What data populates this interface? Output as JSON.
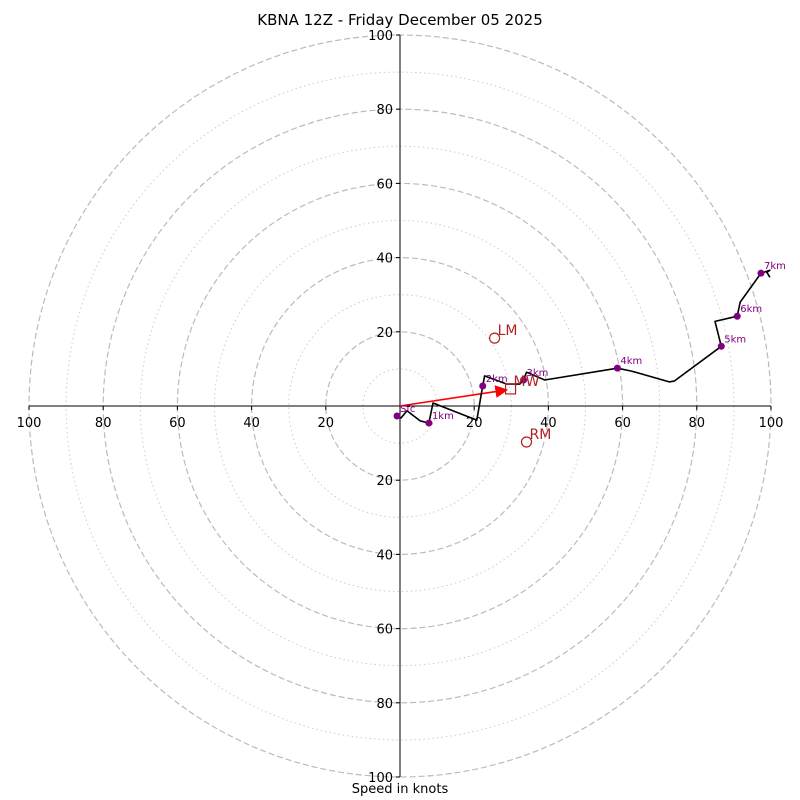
{
  "chart_data": {
    "type": "line",
    "subtype": "hodograph",
    "title": "KBNA 12Z - Friday December 05 2025",
    "xlabel": "Speed in knots",
    "ylabel": "",
    "xlim": [
      -100,
      100
    ],
    "ylim": [
      -100,
      100
    ],
    "xticks": [
      100,
      80,
      60,
      40,
      20,
      20,
      40,
      60,
      80,
      100
    ],
    "xtick_values": [
      -100,
      -80,
      -60,
      -40,
      -20,
      20,
      40,
      60,
      80,
      100
    ],
    "yticks": [
      100,
      80,
      60,
      40,
      20,
      20,
      40,
      60,
      80,
      100
    ],
    "ytick_values": [
      100,
      80,
      60,
      40,
      20,
      -20,
      -40,
      -60,
      -80,
      -100
    ],
    "rings_major": [
      20,
      40,
      60,
      80,
      100
    ],
    "rings_minor": [
      10,
      30,
      50,
      70,
      90
    ],
    "grid": true,
    "colors": {
      "path": "#000000",
      "points": "#800080",
      "motion": "#b22222",
      "mean_wind_arrow": "#ff0000",
      "grid": "#bbbbbb"
    },
    "hodograph_path": [
      [
        -0.8,
        -2.7
      ],
      [
        0.3,
        -3.2
      ],
      [
        1.9,
        -1.3
      ],
      [
        5.4,
        -4.0
      ],
      [
        7.8,
        -4.6
      ],
      [
        8.9,
        0.8
      ],
      [
        20.7,
        -3.8
      ],
      [
        22.3,
        5.4
      ],
      [
        22.8,
        8.1
      ],
      [
        28.8,
        5.9
      ],
      [
        32.3,
        5.9
      ],
      [
        33.3,
        7.0
      ],
      [
        34.1,
        9.1
      ],
      [
        39.0,
        7.0
      ],
      [
        58.6,
        10.2
      ],
      [
        62.4,
        9.4
      ],
      [
        72.6,
        6.5
      ],
      [
        73.9,
        6.7
      ],
      [
        86.6,
        16.1
      ],
      [
        84.9,
        22.8
      ],
      [
        90.9,
        24.2
      ],
      [
        91.7,
        28.0
      ],
      [
        97.3,
        35.8
      ],
      [
        99.7,
        36.6
      ],
      [
        98.9,
        36.0
      ],
      [
        99.7,
        34.7
      ]
    ],
    "height_points": [
      {
        "label": "Sfc",
        "u": -0.8,
        "v": -2.7
      },
      {
        "label": "1km",
        "u": 7.8,
        "v": -4.6
      },
      {
        "label": "2km",
        "u": 22.3,
        "v": 5.4
      },
      {
        "label": "3km",
        "u": 33.3,
        "v": 7.0
      },
      {
        "label": "4km",
        "u": 58.6,
        "v": 10.2
      },
      {
        "label": "5km",
        "u": 86.6,
        "v": 16.1
      },
      {
        "label": "6km",
        "u": 90.9,
        "v": 24.2
      },
      {
        "label": "7km",
        "u": 97.3,
        "v": 35.8
      }
    ],
    "storm_motion": [
      {
        "label": "LM",
        "u": 25.5,
        "v": 18.3,
        "marker": "circle"
      },
      {
        "label": "RM",
        "u": 34.1,
        "v": -9.7,
        "marker": "circle"
      },
      {
        "label": "MW",
        "u": 29.8,
        "v": 4.6,
        "marker": "square"
      }
    ],
    "mean_wind_vector": {
      "from": [
        0,
        0
      ],
      "to": [
        29.8,
        4.6
      ]
    }
  }
}
